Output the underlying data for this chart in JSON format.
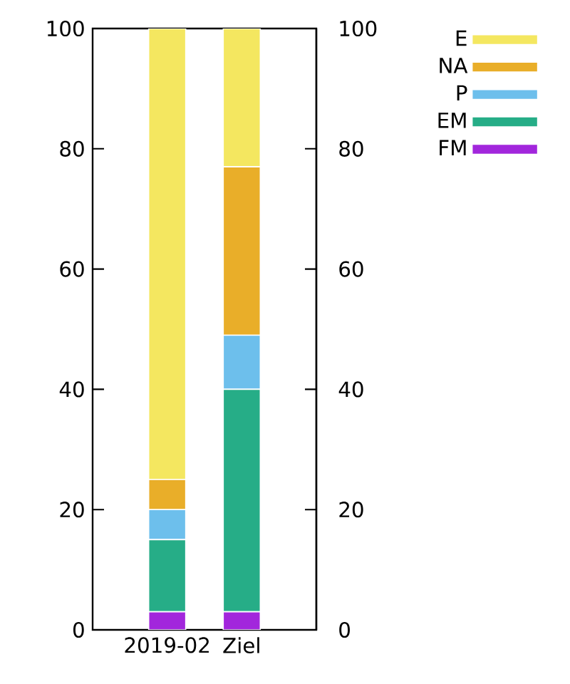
{
  "chart_data": {
    "type": "bar",
    "stacked": true,
    "categories": [
      "2019-02",
      "Ziel"
    ],
    "series": [
      {
        "name": "FM",
        "color": "#a226dc",
        "values": [
          3,
          3
        ]
      },
      {
        "name": "EM",
        "color": "#26ad87",
        "values": [
          12,
          37
        ]
      },
      {
        "name": "P",
        "color": "#6dbfec",
        "values": [
          5,
          9
        ]
      },
      {
        "name": "NA",
        "color": "#e9ae29",
        "values": [
          5,
          28
        ]
      },
      {
        "name": "E",
        "color": "#f4e760",
        "values": [
          75,
          23
        ]
      }
    ],
    "ylim": [
      0,
      100
    ],
    "yticks": [
      0,
      20,
      40,
      60,
      80,
      100
    ],
    "y2lim": [
      0,
      100
    ],
    "y2ticks": [
      0,
      20,
      40,
      60,
      80,
      100
    ],
    "grid": false,
    "legend": "top right"
  }
}
